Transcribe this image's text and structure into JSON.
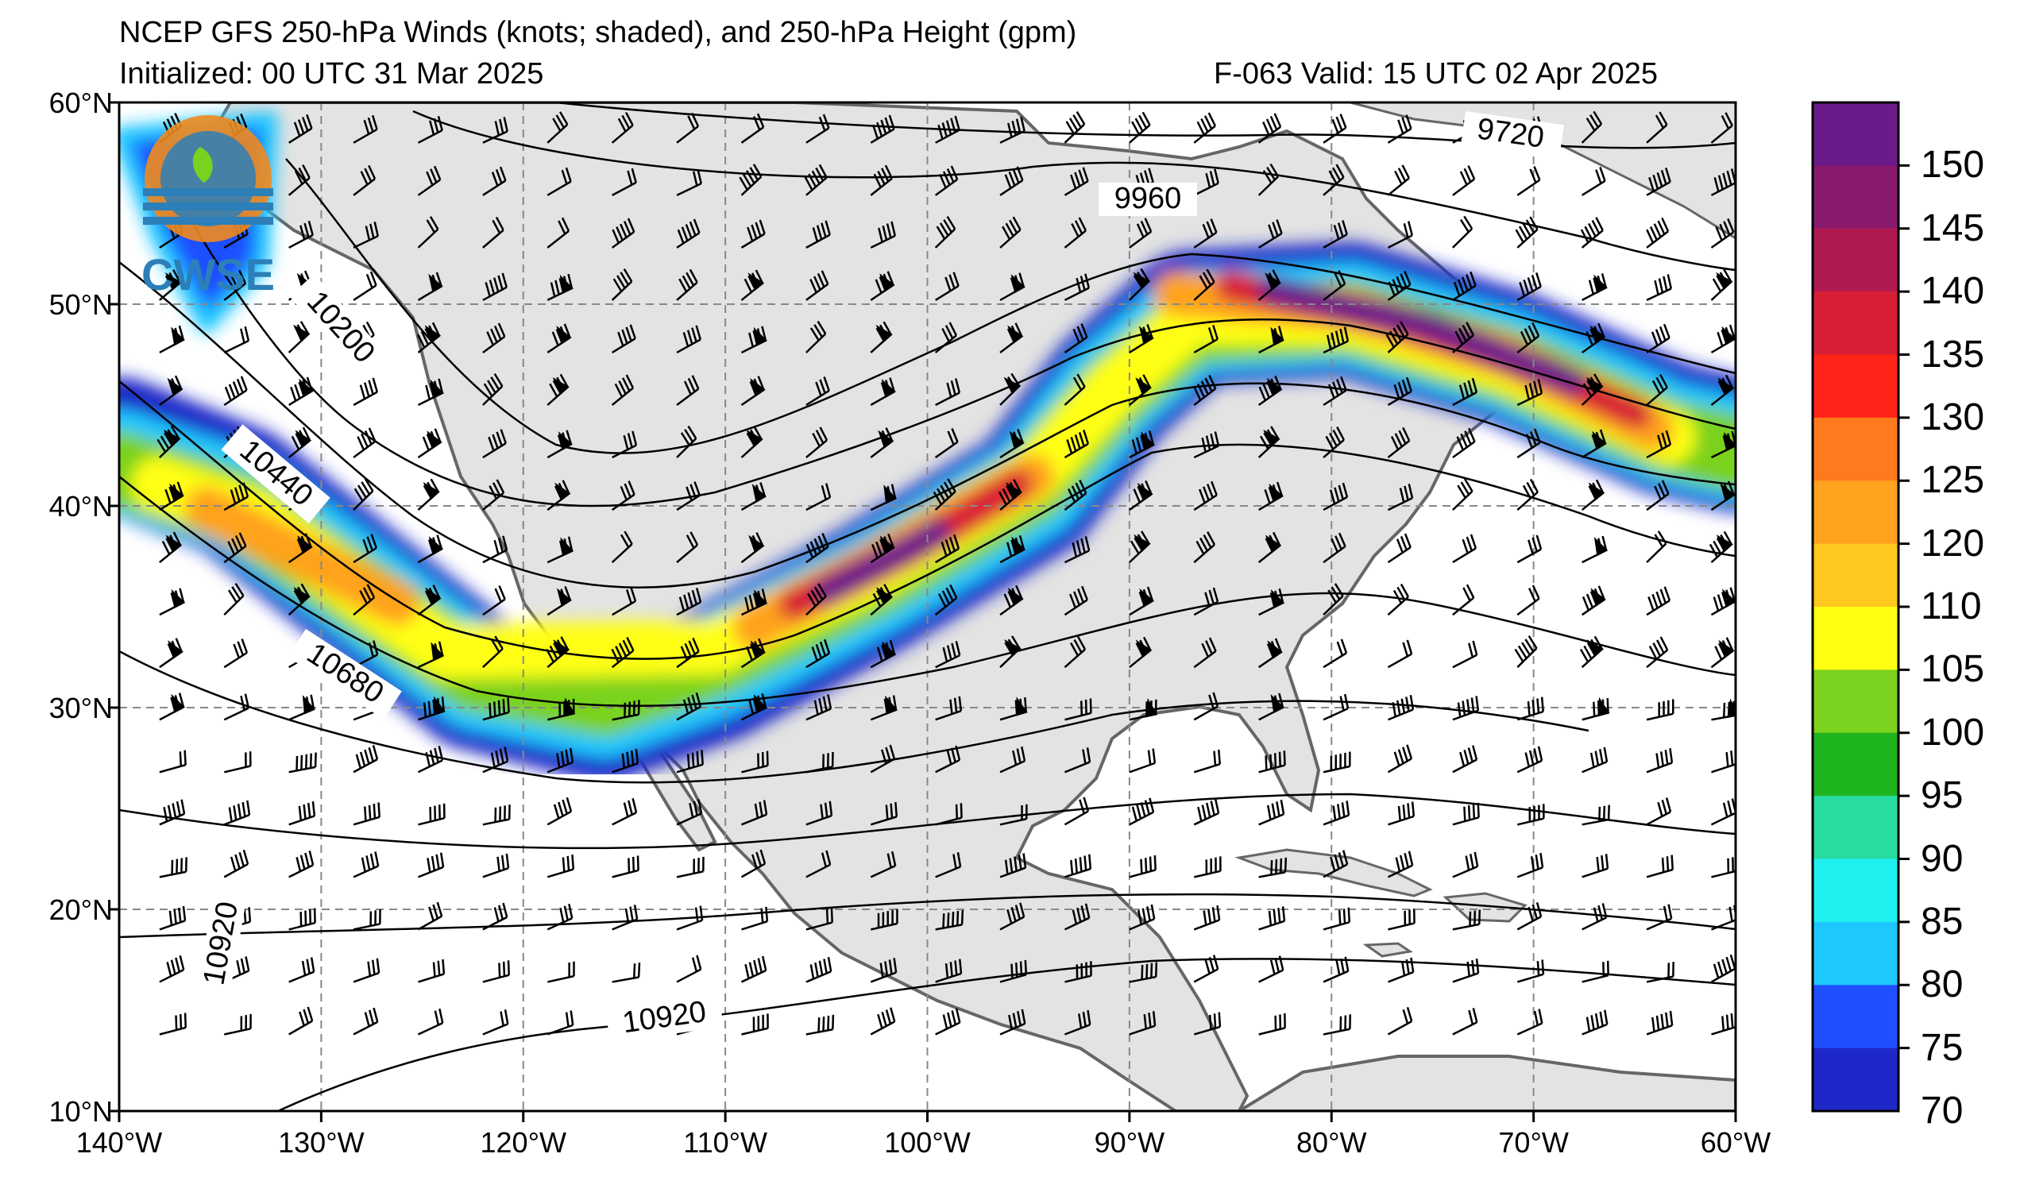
{
  "header": {
    "title_line1": "NCEP GFS 250-hPa Winds (knots; shaded), and 250-hPa Height (gpm)",
    "title_line2": "Initialized: 00 UTC 31 Mar 2025",
    "valid": "F-063  Valid: 15 UTC 02 Apr 2025"
  },
  "logo": {
    "text": "CWSE",
    "icon": "cwse-logo-icon"
  },
  "map": {
    "lat_labels": [
      "60°N",
      "50°N",
      "40°N",
      "30°N",
      "20°N",
      "10°N"
    ],
    "lon_labels": [
      "140°W",
      "130°W",
      "120°W",
      "110°W",
      "100°W",
      "90°W",
      "80°W",
      "70°W",
      "60°W"
    ],
    "lat_values": [
      60,
      50,
      40,
      30,
      20,
      10
    ],
    "lon_values": [
      -140,
      -130,
      -120,
      -110,
      -100,
      -90,
      -80,
      -70,
      -60
    ],
    "extent": {
      "lon": [
        -140,
        -60
      ],
      "lat": [
        10,
        60
      ]
    },
    "contour_labels": [
      "9720",
      "9960",
      "10200",
      "10440",
      "10680",
      "10920",
      "10920"
    ],
    "gridlines": "dashed",
    "land_color": "#e3e3e3",
    "ocean_color": "#ffffff"
  },
  "colorbar": {
    "labels": [
      "150",
      "145",
      "140",
      "135",
      "130",
      "125",
      "120",
      "110",
      "105",
      "100",
      "95",
      "90",
      "85",
      "80",
      "75",
      "70"
    ],
    "colors": [
      "#6a1b8a",
      "#8a1a6e",
      "#b01a50",
      "#d81e36",
      "#ff2418",
      "#ff7a1e",
      "#ffa21e",
      "#ffc81e",
      "#ffff14",
      "#7ad21e",
      "#1eb41e",
      "#28dca0",
      "#1ef0f0",
      "#1ec8ff",
      "#1e50ff",
      "#1e28c8"
    ]
  }
}
